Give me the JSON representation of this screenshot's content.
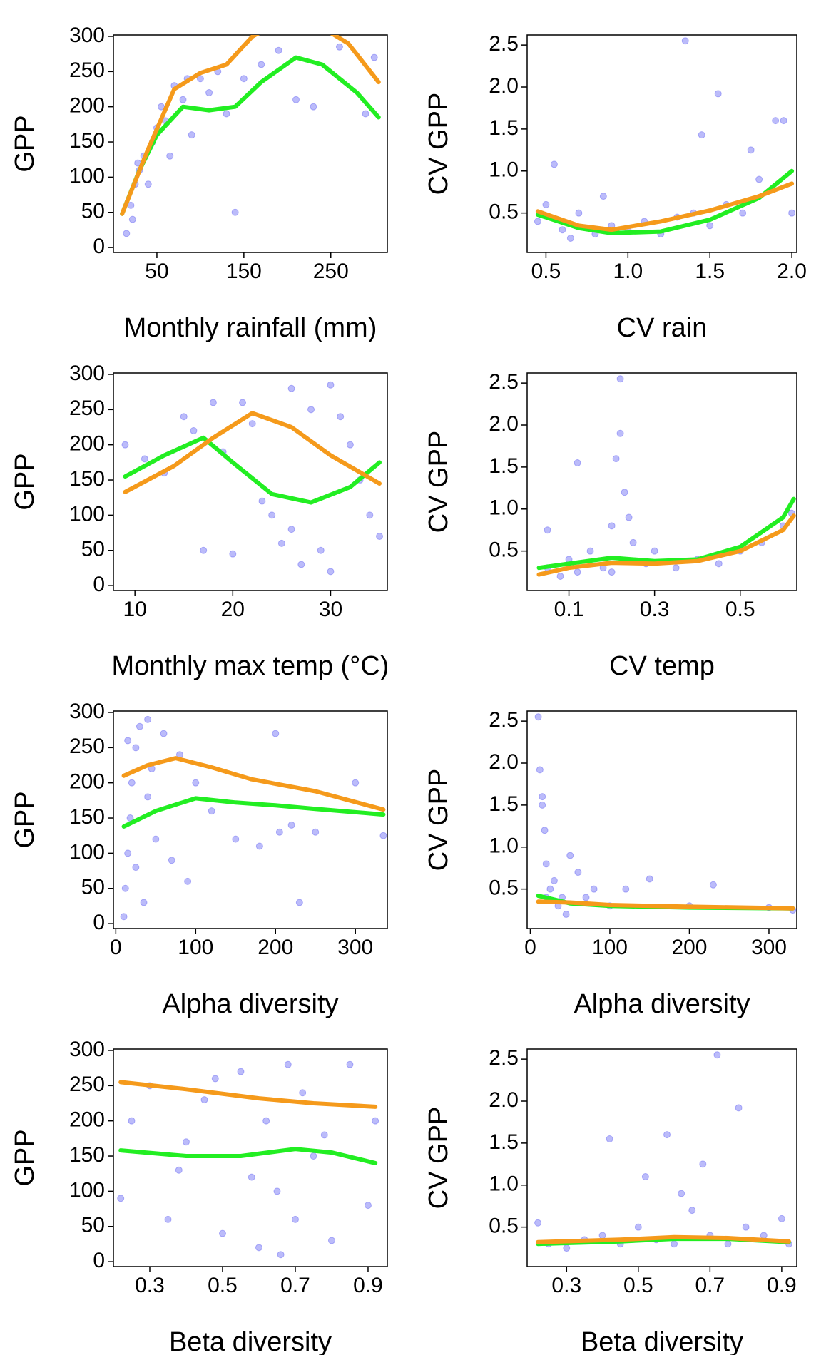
{
  "chart_data": [
    {
      "type": "scatter",
      "x_label": "Monthly rainfall (mm)",
      "y_label": "GPP",
      "xlim": [
        0,
        315
      ],
      "ylim": [
        -7,
        302
      ],
      "xticks": [
        50,
        150,
        250
      ],
      "yticks": [
        0,
        50,
        100,
        150,
        200,
        250,
        300
      ],
      "points": {
        "color": "#3b3bf0",
        "opacity": 0.35,
        "x": [
          15,
          20,
          25,
          30,
          35,
          40,
          45,
          50,
          55,
          60,
          70,
          80,
          90,
          100,
          110,
          120,
          130,
          150,
          170,
          190,
          210,
          230,
          260,
          290,
          300,
          22,
          28,
          65,
          85,
          140
        ],
        "y": [
          20,
          60,
          90,
          110,
          130,
          90,
          150,
          170,
          200,
          180,
          230,
          210,
          160,
          240,
          220,
          250,
          190,
          240,
          260,
          280,
          210,
          200,
          285,
          190,
          270,
          40,
          120,
          130,
          240,
          50
        ]
      },
      "series": [
        {
          "color": "#22ee22",
          "x": [
            10,
            30,
            50,
            80,
            110,
            140,
            170,
            210,
            240,
            280,
            305
          ],
          "y": [
            48,
            110,
            160,
            200,
            195,
            200,
            235,
            270,
            260,
            220,
            185
          ]
        },
        {
          "color": "#f59a1b",
          "x": [
            10,
            40,
            70,
            100,
            130,
            160,
            190,
            230,
            270,
            305
          ],
          "y": [
            48,
            140,
            225,
            248,
            260,
            300,
            320,
            320,
            290,
            235
          ]
        }
      ]
    },
    {
      "type": "scatter",
      "x_label": "CV rain",
      "y_label": "CV GPP",
      "xlim": [
        0.385,
        2.03
      ],
      "ylim": [
        0.03,
        2.62
      ],
      "xticks": [
        0.5,
        {
          "value": 1,
          "label": "1.0"
        },
        1.5,
        {
          "value": 2,
          "label": "2.0"
        }
      ],
      "yticks": [
        0.5,
        {
          "value": 1,
          "label": "1.0"
        },
        1.5,
        {
          "value": 2,
          "label": "2.0"
        },
        2.5
      ],
      "points": {
        "color": "#3b3bf0",
        "opacity": 0.35,
        "x": [
          0.45,
          0.5,
          0.6,
          0.7,
          0.8,
          0.9,
          1.0,
          1.1,
          1.2,
          1.3,
          1.4,
          1.5,
          1.6,
          1.7,
          1.8,
          1.9,
          2.0,
          0.55,
          0.85,
          1.35,
          1.55,
          1.45,
          1.75,
          1.95,
          0.65
        ],
        "y": [
          0.4,
          0.6,
          0.3,
          0.5,
          0.25,
          0.35,
          0.3,
          0.4,
          0.25,
          0.45,
          0.5,
          0.35,
          0.6,
          0.5,
          0.9,
          1.6,
          0.5,
          1.08,
          0.7,
          2.55,
          1.92,
          1.43,
          1.25,
          1.6,
          0.2
        ]
      },
      "series": [
        {
          "color": "#22ee22",
          "x": [
            0.45,
            0.7,
            0.9,
            1.2,
            1.5,
            1.8,
            2.0
          ],
          "y": [
            0.48,
            0.32,
            0.26,
            0.28,
            0.42,
            0.68,
            1.0
          ]
        },
        {
          "color": "#f59a1b",
          "x": [
            0.45,
            0.7,
            0.9,
            1.2,
            1.5,
            1.8,
            2.0
          ],
          "y": [
            0.52,
            0.35,
            0.3,
            0.4,
            0.53,
            0.7,
            0.85
          ]
        }
      ]
    },
    {
      "type": "scatter",
      "x_label": "Monthly max temp (°C)",
      "y_label": "GPP",
      "xlim": [
        7.8,
        35.8
      ],
      "ylim": [
        -7,
        302
      ],
      "xticks": [
        10,
        20,
        30
      ],
      "yticks": [
        0,
        50,
        100,
        150,
        200,
        250,
        300
      ],
      "points": {
        "color": "#3b3bf0",
        "opacity": 0.35,
        "x": [
          9,
          11,
          13,
          15,
          16,
          17,
          19,
          21,
          22,
          23,
          24,
          25,
          26,
          27,
          28,
          29,
          30,
          31,
          32,
          33,
          34,
          35,
          18,
          20,
          26,
          30
        ],
        "y": [
          200,
          180,
          160,
          240,
          220,
          50,
          190,
          260,
          230,
          120,
          100,
          60,
          80,
          30,
          250,
          50,
          20,
          240,
          200,
          150,
          100,
          70,
          260,
          45,
          280,
          285
        ]
      },
      "series": [
        {
          "color": "#22ee22",
          "x": [
            9,
            13,
            17,
            20,
            24,
            28,
            32,
            35
          ],
          "y": [
            155,
            185,
            210,
            175,
            130,
            118,
            140,
            175
          ]
        },
        {
          "color": "#f59a1b",
          "x": [
            9,
            14,
            18,
            22,
            26,
            30,
            35
          ],
          "y": [
            133,
            170,
            210,
            245,
            225,
            185,
            145
          ]
        }
      ]
    },
    {
      "type": "scatter",
      "x_label": "CV temp",
      "y_label": "CV GPP",
      "xlim": [
        0.0025,
        0.632
      ],
      "ylim": [
        0.03,
        2.62
      ],
      "xticks": [
        0.1,
        0.3,
        0.5
      ],
      "yticks": [
        0.5,
        {
          "value": 1,
          "label": "1.0"
        },
        1.5,
        {
          "value": 2,
          "label": "2.0"
        },
        2.5
      ],
      "points": {
        "color": "#3b3bf0",
        "opacity": 0.35,
        "x": [
          0.05,
          0.08,
          0.1,
          0.12,
          0.15,
          0.18,
          0.2,
          0.21,
          0.22,
          0.23,
          0.25,
          0.28,
          0.3,
          0.35,
          0.4,
          0.45,
          0.5,
          0.55,
          0.6,
          0.62,
          0.22,
          0.2,
          0.12,
          0.24,
          0.05
        ],
        "y": [
          0.3,
          0.2,
          0.4,
          0.25,
          0.5,
          0.3,
          0.8,
          1.6,
          2.55,
          1.2,
          0.6,
          0.35,
          0.5,
          0.3,
          0.4,
          0.35,
          0.5,
          0.6,
          0.8,
          0.95,
          1.9,
          0.25,
          1.55,
          0.9,
          0.75
        ]
      },
      "series": [
        {
          "color": "#22ee22",
          "x": [
            0.03,
            0.1,
            0.2,
            0.3,
            0.4,
            0.5,
            0.6,
            0.625
          ],
          "y": [
            0.3,
            0.35,
            0.42,
            0.38,
            0.4,
            0.55,
            0.9,
            1.12
          ]
        },
        {
          "color": "#f59a1b",
          "x": [
            0.03,
            0.1,
            0.2,
            0.3,
            0.4,
            0.5,
            0.6,
            0.625
          ],
          "y": [
            0.22,
            0.3,
            0.36,
            0.35,
            0.38,
            0.5,
            0.75,
            0.92
          ]
        }
      ]
    },
    {
      "type": "scatter",
      "x_label": "Alpha diversity",
      "y_label": "GPP",
      "xlim": [
        -3,
        340
      ],
      "ylim": [
        -7,
        302
      ],
      "xticks": [
        0,
        100,
        200,
        300
      ],
      "yticks": [
        0,
        50,
        100,
        150,
        200,
        250,
        300
      ],
      "points": {
        "color": "#3b3bf0",
        "opacity": 0.35,
        "x": [
          10,
          12,
          15,
          18,
          20,
          25,
          30,
          35,
          40,
          45,
          50,
          60,
          70,
          80,
          90,
          100,
          120,
          150,
          180,
          200,
          220,
          250,
          300,
          335,
          15,
          25,
          40,
          205,
          230
        ],
        "y": [
          10,
          50,
          100,
          150,
          200,
          250,
          280,
          30,
          180,
          220,
          120,
          270,
          90,
          240,
          60,
          200,
          160,
          120,
          110,
          270,
          140,
          130,
          200,
          125,
          260,
          80,
          290,
          130,
          30
        ]
      },
      "series": [
        {
          "color": "#22ee22",
          "x": [
            10,
            50,
            100,
            150,
            200,
            250,
            335
          ],
          "y": [
            138,
            160,
            178,
            172,
            168,
            163,
            155
          ]
        },
        {
          "color": "#f59a1b",
          "x": [
            10,
            40,
            75,
            120,
            170,
            250,
            335
          ],
          "y": [
            210,
            225,
            235,
            222,
            205,
            188,
            162
          ]
        }
      ]
    },
    {
      "type": "scatter",
      "x_label": "Alpha diversity",
      "y_label": "CV GPP",
      "xlim": [
        -4,
        335
      ],
      "ylim": [
        0.03,
        2.62
      ],
      "xticks": [
        0,
        100,
        200,
        300
      ],
      "yticks": [
        0.5,
        {
          "value": 1,
          "label": "1.0"
        },
        1.5,
        {
          "value": 2,
          "label": "2.0"
        },
        2.5
      ],
      "points": {
        "color": "#3b3bf0",
        "opacity": 0.35,
        "x": [
          10,
          12,
          15,
          18,
          20,
          25,
          30,
          35,
          40,
          50,
          60,
          70,
          80,
          100,
          120,
          150,
          200,
          230,
          300,
          330,
          15,
          20,
          45
        ],
        "y": [
          2.55,
          1.92,
          1.6,
          1.2,
          0.8,
          0.5,
          0.6,
          0.3,
          0.4,
          0.9,
          0.7,
          0.4,
          0.5,
          0.3,
          0.5,
          0.62,
          0.3,
          0.55,
          0.28,
          0.25,
          1.5,
          0.4,
          0.2
        ]
      },
      "series": [
        {
          "color": "#22ee22",
          "x": [
            10,
            50,
            100,
            200,
            330
          ],
          "y": [
            0.42,
            0.33,
            0.3,
            0.28,
            0.27
          ]
        },
        {
          "color": "#f59a1b",
          "x": [
            10,
            50,
            100,
            200,
            330
          ],
          "y": [
            0.35,
            0.34,
            0.31,
            0.29,
            0.27
          ]
        }
      ]
    },
    {
      "type": "scatter",
      "x_label": "Beta diversity",
      "y_label": "GPP",
      "xlim": [
        0.2,
        0.953
      ],
      "ylim": [
        -7,
        302
      ],
      "xticks": [
        0.3,
        0.5,
        0.7,
        0.9
      ],
      "yticks": [
        0,
        50,
        100,
        150,
        200,
        250,
        300
      ],
      "points": {
        "color": "#3b3bf0",
        "opacity": 0.35,
        "x": [
          0.22,
          0.25,
          0.3,
          0.35,
          0.4,
          0.45,
          0.5,
          0.55,
          0.6,
          0.62,
          0.65,
          0.68,
          0.7,
          0.72,
          0.75,
          0.8,
          0.85,
          0.9,
          0.92,
          0.58,
          0.66,
          0.78,
          0.38,
          0.48
        ],
        "y": [
          90,
          200,
          250,
          60,
          170,
          230,
          40,
          270,
          20,
          200,
          100,
          280,
          60,
          240,
          150,
          30,
          280,
          80,
          200,
          120,
          10,
          180,
          130,
          260
        ]
      },
      "series": [
        {
          "color": "#22ee22",
          "x": [
            0.22,
            0.4,
            0.55,
            0.7,
            0.8,
            0.92
          ],
          "y": [
            158,
            150,
            150,
            160,
            155,
            140
          ]
        },
        {
          "color": "#f59a1b",
          "x": [
            0.22,
            0.4,
            0.6,
            0.75,
            0.92
          ],
          "y": [
            255,
            245,
            232,
            225,
            220
          ]
        }
      ]
    },
    {
      "type": "scatter",
      "x_label": "Beta diversity",
      "y_label": "CV GPP",
      "xlim": [
        0.19,
        0.942
      ],
      "ylim": [
        0.03,
        2.62
      ],
      "xticks": [
        0.3,
        0.5,
        0.7,
        0.9
      ],
      "yticks": [
        0.5,
        {
          "value": 1,
          "label": "1.0"
        },
        1.5,
        {
          "value": 2,
          "label": "2.0"
        },
        2.5
      ],
      "points": {
        "color": "#3b3bf0",
        "opacity": 0.35,
        "x": [
          0.22,
          0.25,
          0.3,
          0.35,
          0.4,
          0.42,
          0.45,
          0.5,
          0.55,
          0.58,
          0.6,
          0.65,
          0.7,
          0.72,
          0.75,
          0.78,
          0.8,
          0.85,
          0.9,
          0.92,
          0.68,
          0.62,
          0.52
        ],
        "y": [
          0.55,
          0.3,
          0.25,
          0.35,
          0.4,
          1.55,
          0.3,
          0.5,
          0.35,
          1.6,
          0.3,
          0.7,
          0.4,
          2.55,
          0.3,
          1.92,
          0.5,
          0.4,
          0.6,
          0.3,
          1.25,
          0.9,
          1.1
        ]
      },
      "series": [
        {
          "color": "#22ee22",
          "x": [
            0.22,
            0.45,
            0.6,
            0.75,
            0.92
          ],
          "y": [
            0.3,
            0.33,
            0.36,
            0.36,
            0.32
          ]
        },
        {
          "color": "#f59a1b",
          "x": [
            0.22,
            0.45,
            0.6,
            0.75,
            0.92
          ],
          "y": [
            0.32,
            0.35,
            0.38,
            0.37,
            0.33
          ]
        }
      ]
    }
  ]
}
